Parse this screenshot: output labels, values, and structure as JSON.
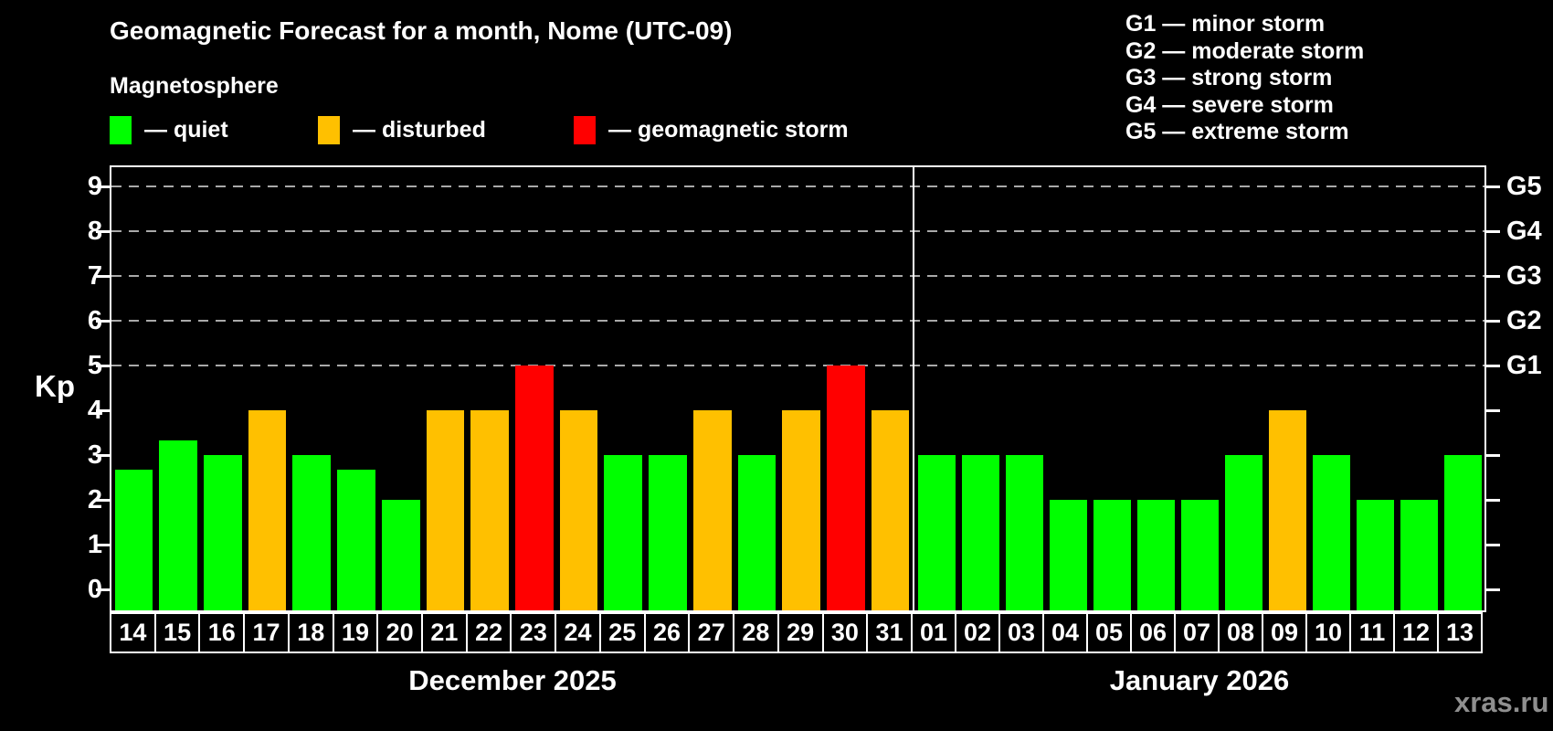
{
  "title": "Geomagnetic Forecast for a month, Nome (UTC-09)",
  "subtitle": "Magnetosphere",
  "legend": {
    "quiet_label": "— quiet",
    "disturbed_label": "— disturbed",
    "storm_label": "— geomagnetic storm"
  },
  "g_scale_legend": [
    "G1 — minor storm",
    "G2 — moderate storm",
    "G3 — strong storm",
    "G4 — severe storm",
    "G5 — extreme storm"
  ],
  "y_axis": {
    "label": "Kp",
    "ticks": [
      0,
      1,
      2,
      3,
      4,
      5,
      6,
      7,
      8,
      9
    ]
  },
  "right_axis": {
    "labels": [
      {
        "kp": 5,
        "text": "G1"
      },
      {
        "kp": 6,
        "text": "G2"
      },
      {
        "kp": 7,
        "text": "G3"
      },
      {
        "kp": 8,
        "text": "G4"
      },
      {
        "kp": 9,
        "text": "G5"
      }
    ]
  },
  "colors": {
    "quiet": "#00ff00",
    "disturbed": "#ffc000",
    "storm": "#ff0000",
    "background": "#000000",
    "text": "#ffffff",
    "gridline": "#a9a9a9",
    "watermark": "#8f8f8f"
  },
  "watermark": "xras.ru",
  "chart_data": {
    "type": "bar",
    "title": "Geomagnetic Forecast for a month, Nome (UTC-09)",
    "subtitle": "Magnetosphere",
    "ylabel": "Kp",
    "ylim": [
      0,
      9
    ],
    "grid": "dashed horizontal at Kp 5-9 only",
    "gridlines_at": [
      5,
      6,
      7,
      8,
      9
    ],
    "legend_position": "top-left",
    "level_thresholds": {
      "quiet": "Kp < 4",
      "disturbed": "4 <= Kp < 5",
      "storm": "Kp >= 5"
    },
    "groups": [
      {
        "month": "December 2025",
        "days": [
          "14",
          "15",
          "16",
          "17",
          "18",
          "19",
          "20",
          "21",
          "22",
          "23",
          "24",
          "25",
          "26",
          "27",
          "28",
          "29",
          "30",
          "31"
        ],
        "kp_values": [
          2.67,
          3.33,
          3,
          4,
          3,
          2.67,
          2,
          4,
          4,
          5,
          4,
          3,
          3,
          4,
          3,
          4,
          5,
          4
        ],
        "levels": [
          "quiet",
          "quiet",
          "quiet",
          "disturbed",
          "quiet",
          "quiet",
          "quiet",
          "disturbed",
          "disturbed",
          "storm",
          "disturbed",
          "quiet",
          "quiet",
          "disturbed",
          "quiet",
          "disturbed",
          "storm",
          "disturbed"
        ]
      },
      {
        "month": "January 2026",
        "days": [
          "01",
          "02",
          "03",
          "04",
          "05",
          "06",
          "07",
          "08",
          "09",
          "10",
          "11",
          "12",
          "13"
        ],
        "kp_values": [
          3,
          3,
          3,
          2,
          2,
          2,
          2,
          3,
          4,
          3,
          2,
          2,
          3
        ],
        "levels": [
          "quiet",
          "quiet",
          "quiet",
          "quiet",
          "quiet",
          "quiet",
          "quiet",
          "quiet",
          "disturbed",
          "quiet",
          "quiet",
          "quiet",
          "quiet"
        ]
      }
    ]
  }
}
